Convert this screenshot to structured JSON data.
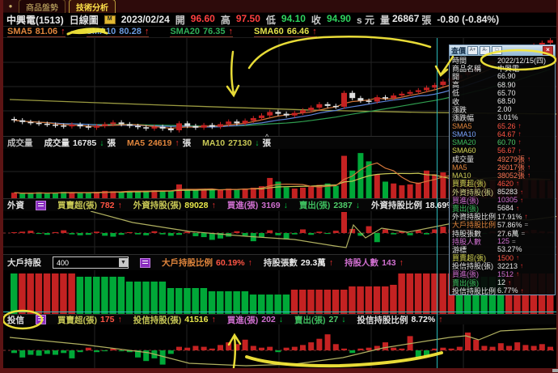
{
  "tabs": [
    {
      "label": "商品盤勢"
    },
    {
      "label": "技術分析"
    }
  ],
  "title": {
    "symbol": "中興電(1513)",
    "period": "日線圖",
    "date": "2023/02/24",
    "fields": [
      {
        "label": "開",
        "value": "96.60",
        "color": "#ff4040"
      },
      {
        "label": "高",
        "value": "97.50",
        "color": "#ff4040"
      },
      {
        "label": "低",
        "value": "94.10",
        "color": "#2fd45f"
      },
      {
        "label": "收",
        "value": "94.90",
        "color": "#2fd45f"
      }
    ],
    "suffix": "s 元",
    "vol_label": "量",
    "volume": "26867",
    "vol_unit": "張",
    "change": "-0.80 (-0.84%)"
  },
  "sma_bar": [
    {
      "label": "SMA5",
      "value": "81.06",
      "dir": "u",
      "color": "#e0853c"
    },
    {
      "label": "SMA10",
      "value": "80.28",
      "dir": "u",
      "color": "#6a9adf"
    },
    {
      "label": "SMA20",
      "value": "76.35",
      "dir": "u",
      "color": "#2fae57"
    },
    {
      "label": "SMA60",
      "value": "66.46",
      "dir": "u",
      "color": "#e0e04a"
    }
  ],
  "sections": {
    "volume": {
      "label": "成交量",
      "items": [
        {
          "l": "成交量",
          "v": "16785",
          "a": "d",
          "lc": "#e8e8e8",
          "vc": "#e8e8e8",
          "unit": "張"
        },
        {
          "l": "MA5",
          "v": "24619",
          "a": "u",
          "lc": "#e0853c",
          "vc": "#e0853c",
          "unit": "張"
        },
        {
          "l": "MA10",
          "v": "27130",
          "a": "d",
          "lc": "#c8c855",
          "vc": "#c8c855",
          "unit": "張"
        }
      ]
    },
    "foreign": {
      "label": "外資",
      "items": [
        {
          "l": "買賣超(張)",
          "v": "782",
          "a": "u",
          "lc": "#c8c855",
          "vc": "#ff5544"
        },
        {
          "l": "外資持股(張)",
          "v": "89028",
          "a": "u",
          "lc": "#c8c855",
          "vc": "#e8e84a"
        },
        {
          "l": "買進(張)",
          "v": "3169",
          "a": "d",
          "lc": "#cf6fcf",
          "vc": "#cf6fcf"
        },
        {
          "l": "賣出(張)",
          "v": "2387",
          "a": "d",
          "lc": "#3dbb5d",
          "vc": "#4fcc6a"
        },
        {
          "l": "外資持股比例",
          "v": "18.69%",
          "a": "u",
          "lc": "#e0e0e0",
          "vc": "#f0f0f0"
        }
      ]
    },
    "bigholder": {
      "label": "大戶持股",
      "select_value": "400",
      "items": [
        {
          "l": "大戶持股比例",
          "v": "60.19%",
          "a": "u",
          "lc": "#e0853c",
          "vc": "#ff5544"
        },
        {
          "l": "持股張數",
          "v": "29.3萬",
          "a": "u",
          "lc": "#e0e0e0",
          "vc": "#f0f0f0"
        },
        {
          "l": "持股人數",
          "v": "143",
          "a": "u",
          "lc": "#cf6fcf",
          "vc": "#cf6fcf"
        }
      ]
    },
    "trust": {
      "label": "投信",
      "items": [
        {
          "l": "買賣超(張)",
          "v": "175",
          "a": "u",
          "lc": "#c8c855",
          "vc": "#ff5544"
        },
        {
          "l": "投信持股(張)",
          "v": "41516",
          "a": "u",
          "lc": "#c8c855",
          "vc": "#e8e84a"
        },
        {
          "l": "買進(張)",
          "v": "202",
          "a": "d",
          "lc": "#cf6fcf",
          "vc": "#cf6fcf"
        },
        {
          "l": "賣出(張)",
          "v": "27",
          "a": "d",
          "lc": "#3dbb5d",
          "vc": "#4fcc6a"
        },
        {
          "l": "投信持股比例",
          "v": "8.72%",
          "a": "u",
          "lc": "#e0e0e0",
          "vc": "#f0f0f0"
        }
      ]
    }
  },
  "panel": {
    "title": "查價",
    "icons": [
      "A+",
      "A-",
      "□"
    ],
    "close": "×",
    "rows": [
      {
        "l": "時間",
        "v": "2022/12/15(四)",
        "a": "",
        "lc": "#e8e8e8",
        "vc": "#e8e8e8"
      },
      {
        "l": "商品名稱",
        "v": "中興電",
        "a": "",
        "lc": "#e8e8e8",
        "vc": "#e8e8e8"
      },
      {
        "l": "開",
        "v": "66.90",
        "a": "",
        "lc": "#e8e8e8",
        "vc": "#e8e8e8"
      },
      {
        "l": "高",
        "v": "68.90",
        "a": "",
        "lc": "#e8e8e8",
        "vc": "#e8e8e8"
      },
      {
        "l": "低",
        "v": "65.70",
        "a": "",
        "lc": "#e8e8e8",
        "vc": "#e8e8e8"
      },
      {
        "l": "收",
        "v": "68.50",
        "a": "",
        "lc": "#e8e8e8",
        "vc": "#e8e8e8"
      },
      {
        "l": "漲跌",
        "v": "2.00",
        "a": "",
        "lc": "#e8e8e8",
        "vc": "#e8e8e8"
      },
      {
        "l": "漲跌幅",
        "v": "3.01%",
        "a": "",
        "lc": "#e8e8e8",
        "vc": "#e8e8e8"
      },
      {
        "l": "SMA5",
        "v": "65.26",
        "a": "u",
        "lc": "#e0853c",
        "vc": "#ff5544"
      },
      {
        "l": "SMA10",
        "v": "64.67",
        "a": "u",
        "lc": "#7aa4ff",
        "vc": "#ff5544"
      },
      {
        "l": "SMA20",
        "v": "60.70",
        "a": "u",
        "lc": "#3dbb5d",
        "vc": "#4fcc6a"
      },
      {
        "l": "SMA60",
        "v": "56.67",
        "a": "u",
        "lc": "#d8d855",
        "vc": "#ff5544"
      },
      {
        "l": "成交量",
        "v": "49279張",
        "a": "u",
        "lc": "#e8e8e8",
        "vc": "#ff7755"
      },
      {
        "l": "MA5",
        "v": "26017張",
        "a": "u",
        "lc": "#e0853c",
        "vc": "#ff7755"
      },
      {
        "l": "MA10",
        "v": "38052張",
        "a": "u",
        "lc": "#c8c855",
        "vc": "#ff7755"
      },
      {
        "l": "買賣超(張)",
        "v": "4620",
        "a": "u",
        "lc": "#d8d855",
        "vc": "#ff5544"
      },
      {
        "l": "外資持股(張)",
        "v": "85283",
        "a": "u",
        "lc": "#d8d888",
        "vc": "#e8e8e8"
      },
      {
        "l": "買進(張)",
        "v": "10305",
        "a": "u",
        "lc": "#cf6fcf",
        "vc": "#cf6fcf"
      },
      {
        "l": "賣出(張)",
        "v": "5684",
        "a": "u",
        "lc": "#3dbb5d",
        "vc": "#e8e8e8"
      },
      {
        "l": "外資持股比例",
        "v": "17.91%",
        "a": "u",
        "lc": "#e8e8e8",
        "vc": "#e8e8e8"
      },
      {
        "l": "大戶持股比例",
        "v": "57.86%",
        "a": "e",
        "lc": "#e0853c",
        "vc": "#e8e8e8"
      },
      {
        "l": "持股張數",
        "v": "27.6萬",
        "a": "e",
        "lc": "#e8e8e8",
        "vc": "#e8e8e8"
      },
      {
        "l": "持股人數",
        "v": "125",
        "a": "e",
        "lc": "#cf6fcf",
        "vc": "#cf6fcf"
      },
      {
        "l": "游標",
        "v": "53.27%",
        "a": "",
        "lc": "#e8e8e8",
        "vc": "#e8e8e8"
      },
      {
        "l": "買賣超(張)",
        "v": "1500",
        "a": "u",
        "lc": "#d8d855",
        "vc": "#ff5544"
      },
      {
        "l": "投信持股(張)",
        "v": "32213",
        "a": "u",
        "lc": "#e8e8e8",
        "vc": "#e8e8e8"
      },
      {
        "l": "買進(張)",
        "v": "1512",
        "a": "u",
        "lc": "#cf6fcf",
        "vc": "#cf6fcf"
      },
      {
        "l": "賣出(張)",
        "v": "12",
        "a": "u",
        "lc": "#3dbb5d",
        "vc": "#e8e8e8"
      },
      {
        "l": "投信持股比例",
        "v": "6.77%",
        "a": "u",
        "lc": "#e8e8e8",
        "vc": "#e8e8e8"
      }
    ]
  },
  "chart_data": {
    "type": "candlestick+volume+flows",
    "price_range": [
      56,
      78.5
    ],
    "closes": [
      59.6,
      59.2,
      59.0,
      58.8,
      58.6,
      58.4,
      58.2,
      58.6,
      58.2,
      57.9,
      58.3,
      58.7,
      59.1,
      58.7,
      58.3,
      58.0,
      57.7,
      58.1,
      57.7,
      57.3,
      58.9,
      58.3,
      57.9,
      58.5,
      58.1,
      58.7,
      59.3,
      58.9,
      59.5,
      60.1,
      60.7,
      61.5,
      61.1,
      60.7,
      61.3,
      61.9,
      62.5,
      63.3,
      62.9,
      62.7,
      65.9,
      64.7,
      64.1,
      63.9,
      64.9,
      64.7,
      65.3,
      65.7,
      66.1,
      66.5,
      67.1,
      67.7,
      68.5,
      69.2,
      70.0,
      70.8,
      71.6,
      72.4,
      73.2,
      74.0,
      74.8,
      75.6,
      76.2,
      76.8,
      77.4,
      78.0
    ],
    "volumes": [
      6000,
      5000,
      5500,
      6500,
      5200,
      6000,
      7000,
      6400,
      6000,
      5600,
      7000,
      8000,
      7600,
      7200,
      8000,
      7600,
      8200,
      8600,
      8000,
      7600,
      15000,
      9000,
      8600,
      9200,
      8800,
      9600,
      10400,
      9800,
      10600,
      11400,
      13000,
      22000,
      18000,
      12000,
      10500,
      11500,
      12500,
      14500,
      16000,
      13500,
      46000,
      30000,
      49000,
      40000,
      26000,
      18000,
      16000,
      14000,
      15000,
      17000,
      30000,
      26000,
      28000,
      22000,
      20000,
      21000,
      19000,
      18000,
      20000,
      22000,
      21000,
      20000,
      22000,
      21000,
      20000,
      19000
    ],
    "foreign_net": [
      0,
      300,
      500,
      -200,
      -400,
      200,
      600,
      -300,
      -500,
      -400,
      300,
      -600,
      -800,
      -400,
      200,
      -300,
      -500,
      400,
      -300,
      -600,
      -400,
      300,
      -700,
      -900,
      -1500,
      -1200,
      -800,
      400,
      -600,
      -1800,
      -1000,
      600,
      -500,
      -1400,
      -300,
      800,
      -400,
      300,
      -200,
      500,
      4620,
      900,
      -600,
      1500,
      -2000,
      800,
      -300,
      400,
      -500,
      600,
      -300,
      800,
      1400,
      782,
      -400,
      900,
      300,
      -200,
      400,
      600,
      300,
      -400,
      500,
      700,
      400,
      300
    ],
    "bigholder_heights": [
      50,
      50,
      50,
      50,
      50,
      50,
      50,
      50,
      46,
      46,
      46,
      46,
      46,
      46,
      40,
      40,
      40,
      40,
      40,
      32,
      32,
      32,
      32,
      32,
      28,
      28,
      28,
      28,
      28,
      24,
      24,
      24,
      24,
      24,
      30,
      30,
      30,
      30,
      30,
      30,
      30,
      34,
      34,
      34,
      34,
      34,
      36,
      50,
      50,
      50,
      50,
      50,
      50,
      50,
      46,
      46,
      46,
      46,
      46,
      46,
      50,
      50,
      50,
      50,
      50,
      50
    ],
    "bigholder_colors": "grrrrrrrggggggggggggggggggggggggggrrrrrrrrrrrrrrrrrrrrggggggrrrrrr",
    "trust_net": [
      -3,
      -8,
      -5,
      -6,
      -4,
      -5,
      -3,
      -9,
      -2,
      3,
      -2,
      -1,
      2,
      -1,
      -2,
      -8,
      -12,
      -9,
      -16,
      -4,
      4,
      3,
      5,
      4,
      2,
      6,
      9,
      7,
      12,
      5,
      3,
      4,
      -2,
      3,
      4,
      6,
      9,
      13,
      18,
      7,
      2,
      -3,
      2,
      3,
      5,
      9,
      3,
      2,
      16,
      -9,
      -7,
      2,
      3,
      2,
      4,
      20,
      12,
      5,
      4,
      8,
      5,
      9,
      6,
      5,
      7,
      4
    ],
    "lines": {
      "main_yellow": [
        [
          8,
          76
        ],
        [
          200,
          83
        ],
        [
          380,
          89
        ],
        [
          520,
          92
        ],
        [
          688,
          94
        ]
      ],
      "foreign_holding": [
        [
          108,
          0
        ],
        [
          160,
          14
        ],
        [
          230,
          25
        ],
        [
          300,
          31
        ],
        [
          360,
          35
        ],
        [
          410,
          43
        ],
        [
          424,
          45
        ],
        [
          433,
          17
        ],
        [
          448,
          33
        ],
        [
          468,
          21
        ],
        [
          500,
          26
        ],
        [
          530,
          20
        ],
        [
          565,
          13
        ],
        [
          610,
          9
        ],
        [
          650,
          11
        ],
        [
          688,
          6
        ]
      ],
      "trust_holding": [
        [
          8,
          16
        ],
        [
          100,
          25
        ],
        [
          180,
          35
        ],
        [
          230,
          48
        ],
        [
          300,
          51
        ],
        [
          360,
          49
        ],
        [
          420,
          41
        ],
        [
          470,
          29
        ],
        [
          520,
          21
        ],
        [
          552,
          16
        ],
        [
          572,
          14
        ],
        [
          588,
          19
        ],
        [
          615,
          8
        ],
        [
          655,
          6
        ],
        [
          688,
          5
        ]
      ]
    },
    "colors": {
      "up": "#c42222",
      "down_candle": "#e0e0e0",
      "down": "#00a838",
      "sma5": "#d4763a",
      "sma10": "#5c82d6",
      "sma20": "#2f9e4f",
      "volume_ma5": "#d4763a",
      "volume_ma10": "#c8c855",
      "holding_line": "#b0b060",
      "crosshair": "#2ab8b8",
      "annotation": "#f4e73a"
    }
  }
}
